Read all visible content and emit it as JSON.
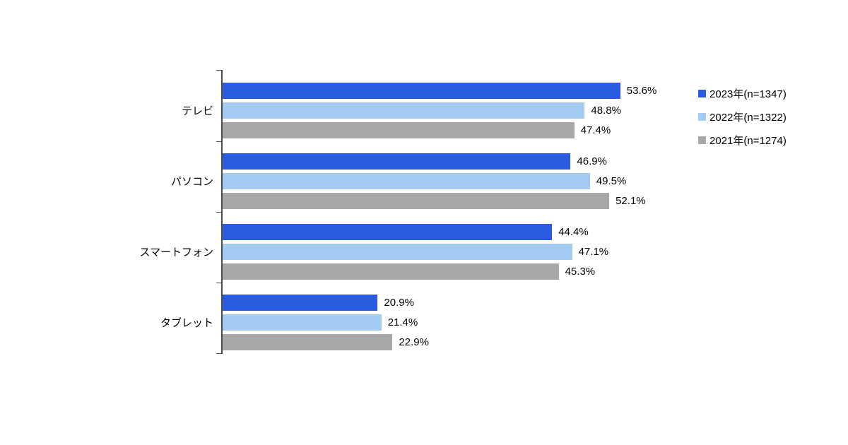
{
  "chart_data": {
    "type": "bar",
    "orientation": "horizontal",
    "title": "",
    "xlabel": "",
    "ylabel": "",
    "xlim": [
      0,
      60
    ],
    "grid": false,
    "legend_position": "right",
    "value_suffix": "%",
    "categories": [
      "テレビ",
      "パソコン",
      "スマートフォン",
      "タブレット"
    ],
    "series": [
      {
        "name": "2023年(n=1347)",
        "color": "#2a5be0",
        "values": [
          53.6,
          46.9,
          44.4,
          20.9
        ]
      },
      {
        "name": "2022年(n=1322)",
        "color": "#a4cbf1",
        "values": [
          48.8,
          49.5,
          47.1,
          21.4
        ]
      },
      {
        "name": "2021年(n=1274)",
        "color": "#a8a8a8",
        "values": [
          47.4,
          52.1,
          45.3,
          22.9
        ]
      }
    ]
  }
}
